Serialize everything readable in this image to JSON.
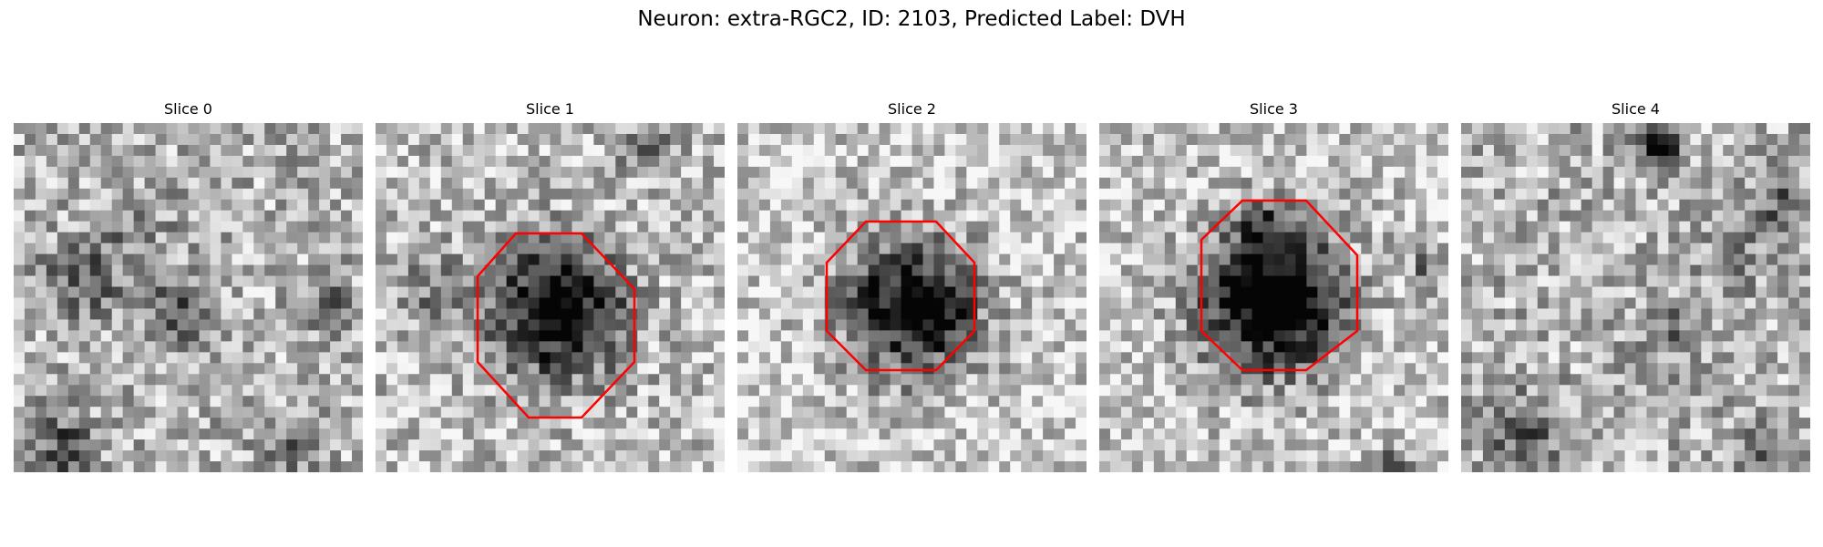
{
  "figure": {
    "title": "Neuron: extra-RGC2, ID: 2103, Predicted Label: DVH"
  },
  "outline_color": "#ff0000",
  "panels": [
    {
      "title": "Slice 0",
      "has_outline": false,
      "blobs": []
    },
    {
      "title": "Slice 1",
      "has_outline": true
    },
    {
      "title": "Slice 2",
      "has_outline": true
    },
    {
      "title": "Slice 3",
      "has_outline": true
    },
    {
      "title": "Slice 4",
      "has_outline": false
    }
  ]
}
